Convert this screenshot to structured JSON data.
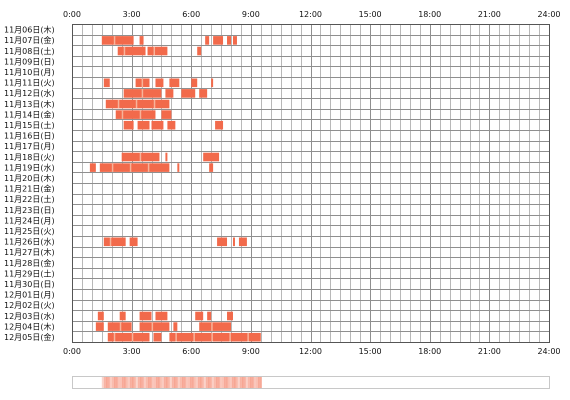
{
  "chart_data": {
    "type": "heatmap",
    "x_unit": "hour",
    "xlim": [
      0,
      24
    ],
    "x_ticks": [
      "0:00",
      "3:00",
      "6:00",
      "9:00",
      "12:00",
      "15:00",
      "18:00",
      "21:00",
      "24:00"
    ],
    "rows": [
      {
        "label": "11月06日(木)",
        "segments": []
      },
      {
        "label": "11月07日(金)",
        "segments": [
          [
            1.5,
            3.1
          ],
          [
            3.4,
            3.6
          ],
          [
            6.7,
            6.9
          ],
          [
            7.1,
            7.6
          ],
          [
            7.8,
            8.0
          ],
          [
            8.1,
            8.3
          ]
        ]
      },
      {
        "label": "11月08日(土)",
        "segments": [
          [
            2.3,
            3.7
          ],
          [
            3.8,
            4.8
          ],
          [
            6.3,
            6.5
          ]
        ]
      },
      {
        "label": "11月09日(日)",
        "segments": []
      },
      {
        "label": "11月10日(月)",
        "segments": []
      },
      {
        "label": "11月11日(火)",
        "segments": [
          [
            1.6,
            1.9
          ],
          [
            3.2,
            3.9
          ],
          [
            4.2,
            4.6
          ],
          [
            4.9,
            5.4
          ],
          [
            6.0,
            6.3
          ],
          [
            7.0,
            7.1
          ]
        ]
      },
      {
        "label": "11月12日(水)",
        "segments": [
          [
            2.6,
            4.5
          ],
          [
            4.7,
            5.1
          ],
          [
            5.5,
            6.2
          ],
          [
            6.4,
            6.8
          ]
        ]
      },
      {
        "label": "11月13日(木)",
        "segments": [
          [
            1.7,
            4.9
          ]
        ]
      },
      {
        "label": "11月14日(金)",
        "segments": [
          [
            2.2,
            4.2
          ],
          [
            4.5,
            5.0
          ]
        ]
      },
      {
        "label": "11月15日(土)",
        "segments": [
          [
            2.6,
            3.1
          ],
          [
            3.3,
            3.9
          ],
          [
            4.0,
            4.6
          ],
          [
            4.8,
            5.2
          ],
          [
            7.2,
            7.6
          ]
        ]
      },
      {
        "label": "11月16日(日)",
        "segments": []
      },
      {
        "label": "11月17日(月)",
        "segments": []
      },
      {
        "label": "11月18日(火)",
        "segments": [
          [
            2.5,
            4.4
          ],
          [
            4.7,
            4.8
          ],
          [
            6.6,
            7.4
          ]
        ]
      },
      {
        "label": "11月19日(水)",
        "segments": [
          [
            0.9,
            1.2
          ],
          [
            1.4,
            4.9
          ],
          [
            5.3,
            5.4
          ],
          [
            6.9,
            7.1
          ]
        ]
      },
      {
        "label": "11月20日(木)",
        "segments": []
      },
      {
        "label": "11月21日(金)",
        "segments": []
      },
      {
        "label": "11月22日(土)",
        "segments": []
      },
      {
        "label": "11月23日(日)",
        "segments": []
      },
      {
        "label": "11月24日(月)",
        "segments": []
      },
      {
        "label": "11月25日(火)",
        "segments": []
      },
      {
        "label": "11月26日(水)",
        "segments": [
          [
            1.6,
            2.7
          ],
          [
            2.9,
            3.3
          ],
          [
            7.3,
            7.8
          ],
          [
            8.1,
            8.2
          ],
          [
            8.4,
            8.8
          ]
        ]
      },
      {
        "label": "11月27日(木)",
        "segments": []
      },
      {
        "label": "11月28日(金)",
        "segments": []
      },
      {
        "label": "11月29日(土)",
        "segments": []
      },
      {
        "label": "11月30日(日)",
        "segments": []
      },
      {
        "label": "12月01日(月)",
        "segments": []
      },
      {
        "label": "12月02日(火)",
        "segments": []
      },
      {
        "label": "12月03日(水)",
        "segments": [
          [
            1.3,
            1.6
          ],
          [
            2.4,
            2.7
          ],
          [
            3.4,
            4.0
          ],
          [
            4.2,
            4.8
          ],
          [
            6.2,
            6.6
          ],
          [
            6.8,
            7.0
          ],
          [
            7.8,
            8.1
          ]
        ]
      },
      {
        "label": "12月04日(木)",
        "segments": [
          [
            1.2,
            1.6
          ],
          [
            1.8,
            3.0
          ],
          [
            3.4,
            4.9
          ],
          [
            5.1,
            5.3
          ],
          [
            6.4,
            8.0
          ]
        ]
      },
      {
        "label": "12月05日(金)",
        "segments": [
          [
            1.8,
            3.9
          ],
          [
            4.1,
            4.5
          ],
          [
            4.9,
            9.5
          ]
        ]
      }
    ],
    "summary_bar": {
      "start": 1.5,
      "end": 9.5
    }
  },
  "colors": {
    "bar": "#f26a4b",
    "bar_light": "#f7b39a",
    "grid": "#8f8f8f",
    "grid_minor": "#b8b8b8",
    "frame": "#555555",
    "summary_border": "#c8c8c8"
  }
}
